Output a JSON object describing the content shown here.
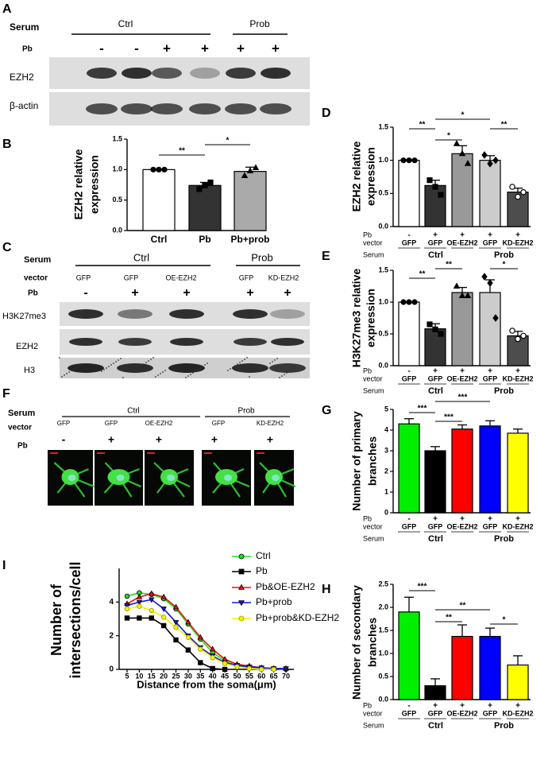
{
  "blot_a": {
    "panel": "A",
    "serum_label": "Serum",
    "groups": [
      "Ctrl",
      "Prob"
    ],
    "pb_label": "Pb",
    "pb": [
      "-",
      "-",
      "+",
      "+",
      "+",
      "+"
    ],
    "rows": [
      "EZH2",
      "β-actin"
    ]
  },
  "blot_c": {
    "panel": "C",
    "serum_label": "Serum",
    "groups": [
      "Ctrl",
      "Prob"
    ],
    "vector_label": "vector",
    "vectors": [
      "GFP",
      "GFP",
      "OE-EZH2",
      "GFP",
      "KD-EZH2"
    ],
    "pb_label": "Pb",
    "pb": [
      "-",
      "+",
      "+",
      "+",
      "+"
    ],
    "rows": [
      "H3K27me3",
      "EZH2",
      "H3"
    ]
  },
  "image_f": {
    "panel": "F",
    "serum_label": "Serum",
    "groups": [
      "Ctrl",
      "Prob"
    ],
    "vector_label": "vector",
    "vectors": [
      "GFP",
      "GFP",
      "OE-EZH2",
      "GFP",
      "KD-EZH2"
    ],
    "pb_label": "Pb",
    "pb": [
      "-",
      "+",
      "+",
      "+",
      "+"
    ]
  },
  "chart_data": [
    {
      "type": "bar",
      "panel": "B",
      "ylabel": [
        "EZH2 relative",
        "expression"
      ],
      "categories": [
        "Ctrl",
        "Pb",
        "Pb+prob"
      ],
      "values": [
        1.0,
        0.74,
        0.97
      ],
      "errors": [
        0.0,
        0.05,
        0.07
      ],
      "points": [
        [
          1,
          1,
          1
        ],
        [
          0.68,
          0.74,
          0.79
        ],
        [
          0.9,
          0.98,
          1.03
        ]
      ],
      "markers": [
        "circle",
        "square",
        "triangle"
      ],
      "colors": [
        "#ffffff",
        "#333333",
        "#aaaaaa"
      ],
      "ylim": [
        0,
        1.5
      ],
      "yticks": [
        {
          "value": 0,
          "label": "0.0"
        },
        {
          "value": 0.5,
          "label": "0.5"
        },
        {
          "value": 1,
          "label": "1.0"
        },
        {
          "value": 1.5,
          "label": "1.5"
        }
      ],
      "brackets": [
        {
          "text": "**",
          "pair": [
            0,
            1
          ]
        },
        {
          "text": "*",
          "pair": [
            1,
            2
          ]
        }
      ]
    },
    {
      "type": "bar",
      "panel": "D",
      "ylabel": [
        "EZH2 relative",
        "expression"
      ],
      "values": [
        1.0,
        0.62,
        1.1,
        1.0,
        0.52
      ],
      "errors": [
        0.0,
        0.08,
        0.12,
        0.07,
        0.06
      ],
      "points": [
        [
          1,
          1,
          1
        ],
        [
          0.7,
          0.6,
          0.48
        ],
        [
          1.25,
          1.1,
          0.95
        ],
        [
          1.08,
          0.95,
          1.0
        ],
        [
          0.6,
          0.45,
          0.52
        ]
      ],
      "markers": [
        "circle",
        "square",
        "triangle",
        "diamond",
        "open-circle"
      ],
      "colors": [
        "#ffffff",
        "#333333",
        "#999999",
        "#cccccc",
        "#4d4d4d"
      ],
      "ylim": [
        0,
        1.5
      ],
      "yticks": [
        {
          "value": 0,
          "label": "0.0"
        },
        {
          "value": 0.5,
          "label": "0.5"
        },
        {
          "value": 1,
          "label": "1.0"
        },
        {
          "value": 1.5,
          "label": "1.5"
        }
      ],
      "conditions": [
        {
          "name": "Pb",
          "values": [
            "-",
            "+",
            "+",
            "+",
            "+"
          ]
        },
        {
          "name": "vector",
          "values": [
            "GFP",
            "GFP",
            "OE-EZH2",
            "GFP",
            "KD-EZH2"
          ]
        }
      ],
      "groups": {
        "name": "Serum",
        "items": [
          {
            "label": "Ctrl",
            "span": 3
          },
          {
            "label": "Prob",
            "span": 2
          }
        ]
      },
      "brackets": [
        {
          "text": "**",
          "pair": [
            0,
            1
          ]
        },
        {
          "text": "*",
          "pair": [
            1,
            2
          ]
        },
        {
          "text": "*",
          "pair": [
            1,
            3
          ]
        },
        {
          "text": "**",
          "pair": [
            3,
            4
          ]
        }
      ]
    },
    {
      "type": "bar",
      "panel": "E",
      "ylabel": [
        "H3K27me3 relative",
        "expression"
      ],
      "values": [
        1.0,
        0.58,
        1.15,
        1.15,
        0.47
      ],
      "errors": [
        0.0,
        0.08,
        0.08,
        0.2,
        0.07
      ],
      "points": [
        [
          1,
          1,
          1
        ],
        [
          0.65,
          0.57,
          0.5
        ],
        [
          1.25,
          1.1,
          1.1
        ],
        [
          1.4,
          1.3,
          0.75
        ],
        [
          0.55,
          0.42,
          0.47
        ]
      ],
      "markers": [
        "circle",
        "square",
        "triangle",
        "diamond",
        "open-circle"
      ],
      "colors": [
        "#ffffff",
        "#333333",
        "#999999",
        "#cccccc",
        "#4d4d4d"
      ],
      "ylim": [
        0,
        1.5
      ],
      "yticks": [
        {
          "value": 0,
          "label": "0.0"
        },
        {
          "value": 0.5,
          "label": "0.5"
        },
        {
          "value": 1,
          "label": "1.0"
        },
        {
          "value": 1.5,
          "label": "1.5"
        }
      ],
      "conditions": [
        {
          "name": "Pb",
          "values": [
            "-",
            "+",
            "+",
            "+",
            "+"
          ]
        },
        {
          "name": "vector",
          "values": [
            "GFP",
            "GFP",
            "OE-EZH2",
            "GFP",
            "KD-EZH2"
          ]
        }
      ],
      "groups": {
        "name": "Serum",
        "items": [
          {
            "label": "Ctrl",
            "span": 3
          },
          {
            "label": "Prob",
            "span": 2
          }
        ]
      },
      "brackets": [
        {
          "text": "**",
          "pair": [
            0,
            1
          ]
        },
        {
          "text": "**",
          "pair": [
            1,
            2
          ]
        },
        {
          "text": "*",
          "pair": [
            3,
            4
          ]
        }
      ]
    },
    {
      "type": "bar",
      "panel": "G",
      "ylabel": [
        "Number of primary",
        "branches"
      ],
      "values": [
        4.3,
        3.0,
        4.05,
        4.2,
        3.85
      ],
      "errors": [
        0.25,
        0.2,
        0.2,
        0.25,
        0.2
      ],
      "colors": [
        "#00ee00",
        "#000000",
        "#ff0000",
        "#0000ff",
        "#ffff00"
      ],
      "ylim": [
        0,
        5
      ],
      "yticks": [
        0,
        1,
        2,
        3,
        4,
        5
      ],
      "conditions": [
        {
          "name": "Pb",
          "values": [
            "-",
            "+",
            "+",
            "+",
            "+"
          ]
        },
        {
          "name": "vector",
          "values": [
            "GFP",
            "GFP",
            "OE-EZH2",
            "GFP",
            "KD-EZH2"
          ]
        }
      ],
      "groups": {
        "name": "Serum",
        "items": [
          {
            "label": "Ctrl",
            "span": 3
          },
          {
            "label": "Prob",
            "span": 2
          }
        ]
      },
      "brackets": [
        {
          "text": "***",
          "pair": [
            0,
            1
          ]
        },
        {
          "text": "***",
          "pair": [
            1,
            2
          ]
        },
        {
          "text": "***",
          "pair": [
            1,
            3
          ]
        }
      ]
    },
    {
      "type": "bar",
      "panel": "H",
      "ylabel": [
        "Number of secondary",
        "branches"
      ],
      "values": [
        1.9,
        0.3,
        1.37,
        1.37,
        0.75
      ],
      "errors": [
        0.32,
        0.15,
        0.25,
        0.18,
        0.2
      ],
      "colors": [
        "#00ee00",
        "#000000",
        "#ff0000",
        "#0000ff",
        "#ffff00"
      ],
      "ylim": [
        0,
        2.5
      ],
      "yticks": [
        {
          "value": 0,
          "label": "0.0"
        },
        {
          "value": 0.5,
          "label": "0.5"
        },
        {
          "value": 1,
          "label": "1.0"
        },
        {
          "value": 1.5,
          "label": "1.5"
        },
        {
          "value": 2,
          "label": "2.0"
        },
        {
          "value": 2.5,
          "label": "2.5"
        }
      ],
      "conditions": [
        {
          "name": "Pb",
          "values": [
            "-",
            "+",
            "+",
            "+",
            "+"
          ]
        },
        {
          "name": "vector",
          "values": [
            "GFP",
            "GFP",
            "OE-EZH2",
            "GFP",
            "KD-EZH2"
          ]
        }
      ],
      "groups": {
        "name": "Serum",
        "items": [
          {
            "label": "Ctrl",
            "span": 3
          },
          {
            "label": "Prob",
            "span": 2
          }
        ]
      },
      "brackets": [
        {
          "text": "***",
          "pair": [
            0,
            1
          ]
        },
        {
          "text": "**",
          "pair": [
            1,
            2
          ]
        },
        {
          "text": "**",
          "pair": [
            1,
            3
          ]
        },
        {
          "text": "*",
          "pair": [
            3,
            4
          ]
        }
      ]
    },
    {
      "type": "line",
      "panel": "I",
      "ylabel": [
        "Number of",
        "intersections/cell"
      ],
      "xlabel": "Distance from the soma(μm)",
      "x": [
        5,
        10,
        15,
        20,
        25,
        30,
        35,
        40,
        45,
        50,
        55,
        60,
        65,
        70
      ],
      "xlim": [
        5,
        70
      ],
      "xticks": [
        5,
        10,
        15,
        20,
        25,
        30,
        35,
        40,
        45,
        50,
        55,
        60,
        65,
        70
      ],
      "ylim": [
        0,
        6
      ],
      "yticks": [
        0,
        2,
        4
      ],
      "series": [
        {
          "name": "Ctrl",
          "color": "#22dd22",
          "marker": "circle",
          "values": [
            4.35,
            4.55,
            4.45,
            4.2,
            3.6,
            2.7,
            1.8,
            1.0,
            0.5,
            0.2,
            0.1,
            0.05,
            0.05,
            0.0
          ]
        },
        {
          "name": "Pb",
          "color": "#000000",
          "marker": "square",
          "values": [
            3.05,
            3.05,
            3.05,
            2.6,
            1.75,
            1.15,
            0.4,
            0.05,
            0.0,
            null,
            null,
            null,
            null,
            null
          ]
        },
        {
          "name": "Pb&OE-EZH2",
          "color": "#ee1111",
          "marker": "triangle",
          "values": [
            3.9,
            4.3,
            4.5,
            4.3,
            3.7,
            2.8,
            1.9,
            1.2,
            0.6,
            0.3,
            0.2,
            0.1,
            0.05,
            0.05
          ]
        },
        {
          "name": "Pb+prob",
          "color": "#1515dd",
          "marker": "triangle-down",
          "values": [
            3.8,
            4.0,
            4.15,
            3.6,
            2.8,
            2.0,
            1.3,
            0.8,
            0.4,
            0.25,
            0.15,
            0.1,
            0.05,
            0.05
          ]
        },
        {
          "name": "Pb+prob&KD-EZH2",
          "color": "#f2f200",
          "marker": "circle",
          "values": [
            3.6,
            3.75,
            3.5,
            3.1,
            2.5,
            1.9,
            1.2,
            0.7,
            0.35,
            0.15,
            0.05,
            0.0,
            0.0,
            null
          ]
        }
      ]
    }
  ]
}
